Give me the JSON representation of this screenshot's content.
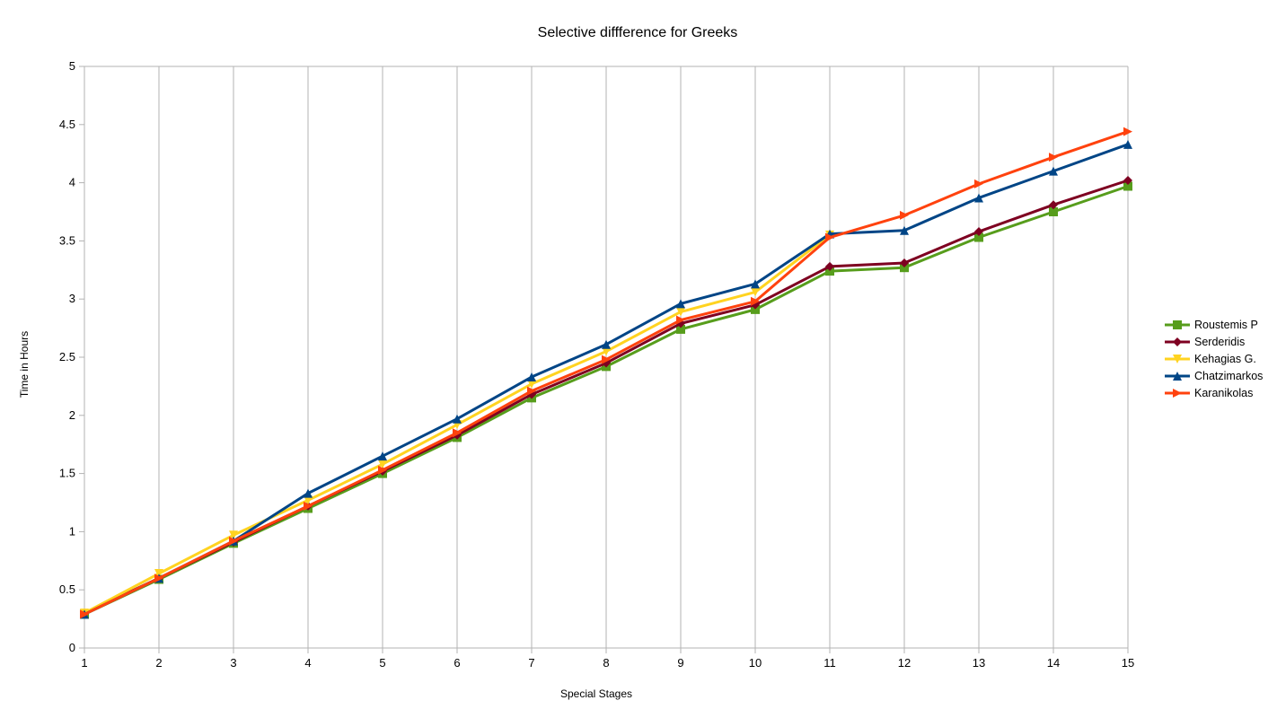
{
  "chart_data": {
    "type": "line",
    "title": "Selective diffference for Greeks",
    "xlabel": "Special Stages",
    "ylabel": "Time in Hours",
    "categories": [
      1,
      2,
      3,
      4,
      5,
      6,
      7,
      8,
      9,
      10,
      11,
      12,
      13,
      14,
      15
    ],
    "ylim": [
      0,
      5
    ],
    "yticks": [
      0,
      0.5,
      1,
      1.5,
      2,
      2.5,
      3,
      3.5,
      4,
      4.5,
      5
    ],
    "grid": "vertical",
    "legend_position": "right",
    "series": [
      {
        "name": "Roustemis  P",
        "color": "#579d1c",
        "marker": "square",
        "values": [
          0.29,
          0.59,
          0.9,
          1.2,
          1.5,
          1.81,
          2.15,
          2.42,
          2.74,
          2.91,
          3.24,
          3.27,
          3.53,
          3.75,
          3.97
        ]
      },
      {
        "name": "Serderidis",
        "color": "#7e0021",
        "marker": "diamond",
        "values": [
          0.3,
          0.6,
          0.91,
          1.22,
          1.52,
          1.83,
          2.18,
          2.45,
          2.79,
          2.95,
          3.28,
          3.31,
          3.58,
          3.81,
          4.02
        ]
      },
      {
        "name": "Kehagias  G.",
        "color": "#ffd320",
        "marker": "triangle-down",
        "values": [
          0.3,
          0.64,
          0.97,
          1.27,
          1.58,
          1.92,
          2.27,
          2.55,
          2.89,
          3.06,
          3.55,
          null,
          null,
          null,
          null
        ]
      },
      {
        "name": "Chatzimarkos",
        "color": "#004586",
        "marker": "triangle-up",
        "values": [
          0.29,
          0.6,
          0.92,
          1.33,
          1.65,
          1.97,
          2.33,
          2.61,
          2.96,
          3.13,
          3.56,
          3.59,
          3.87,
          4.1,
          4.33
        ]
      },
      {
        "name": "Karanikolas",
        "color": "#ff420e",
        "marker": "triangle-right",
        "values": [
          0.29,
          0.6,
          0.92,
          1.22,
          1.53,
          1.85,
          2.21,
          2.48,
          2.82,
          2.98,
          3.53,
          3.72,
          3.99,
          4.22,
          4.44
        ]
      }
    ]
  }
}
